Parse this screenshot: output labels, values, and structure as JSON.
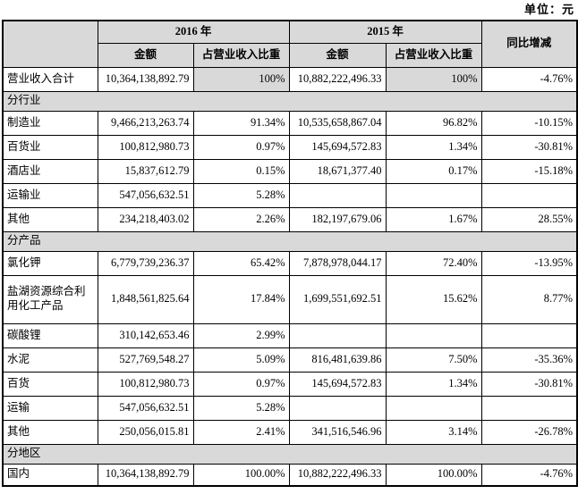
{
  "unit_label": "单位：元",
  "table": {
    "col_headers": {
      "year_2016": "2016 年",
      "year_2015": "2015 年",
      "amount": "金额",
      "ratio": "占营业收入比重",
      "yoy": "同比增减"
    },
    "colors": {
      "header_bg": "#d9d9d9",
      "section_bg": "#d9d9d9",
      "border": "#000000"
    },
    "rows": [
      {
        "type": "data",
        "label": "营业收入合计",
        "amount_2016": "10,364,138,892.79",
        "ratio_2016": "100%",
        "amount_2015": "10,882,222,496.33",
        "ratio_2015": "100%",
        "yoy": "-4.76%",
        "shaded_ratio": true
      },
      {
        "type": "section",
        "label": "分行业"
      },
      {
        "type": "data",
        "label": "制造业",
        "amount_2016": "9,466,213,263.74",
        "ratio_2016": "91.34%",
        "amount_2015": "10,535,658,867.04",
        "ratio_2015": "96.82%",
        "yoy": "-10.15%"
      },
      {
        "type": "data",
        "label": "百货业",
        "amount_2016": "100,812,980.73",
        "ratio_2016": "0.97%",
        "amount_2015": "145,694,572.83",
        "ratio_2015": "1.34%",
        "yoy": "-30.81%"
      },
      {
        "type": "data",
        "label": "酒店业",
        "amount_2016": "15,837,612.79",
        "ratio_2016": "0.15%",
        "amount_2015": "18,671,377.40",
        "ratio_2015": "0.17%",
        "yoy": "-15.18%"
      },
      {
        "type": "data",
        "label": "运输业",
        "amount_2016": "547,056,632.51",
        "ratio_2016": "5.28%",
        "amount_2015": "",
        "ratio_2015": "",
        "yoy": ""
      },
      {
        "type": "data",
        "label": "其他",
        "amount_2016": "234,218,403.02",
        "ratio_2016": "2.26%",
        "amount_2015": "182,197,679.06",
        "ratio_2015": "1.67%",
        "yoy": "28.55%"
      },
      {
        "type": "section",
        "label": "分产品"
      },
      {
        "type": "data",
        "label": "氯化钾",
        "amount_2016": "6,779,739,236.37",
        "ratio_2016": "65.42%",
        "amount_2015": "7,878,978,044.17",
        "ratio_2015": "72.40%",
        "yoy": "-13.95%"
      },
      {
        "type": "data",
        "label": "盐湖资源综合利用化工产品",
        "amount_2016": "1,848,561,825.64",
        "ratio_2016": "17.84%",
        "amount_2015": "1,699,551,692.51",
        "ratio_2015": "15.62%",
        "yoy": "8.77%",
        "tall": true
      },
      {
        "type": "data",
        "label": "碳酸锂",
        "amount_2016": "310,142,653.46",
        "ratio_2016": "2.99%",
        "amount_2015": "",
        "ratio_2015": "",
        "yoy": ""
      },
      {
        "type": "data",
        "label": "水泥",
        "amount_2016": "527,769,548.27",
        "ratio_2016": "5.09%",
        "amount_2015": "816,481,639.86",
        "ratio_2015": "7.50%",
        "yoy": "-35.36%"
      },
      {
        "type": "data",
        "label": "百货",
        "amount_2016": "100,812,980.73",
        "ratio_2016": "0.97%",
        "amount_2015": "145,694,572.83",
        "ratio_2015": "1.34%",
        "yoy": "-30.81%"
      },
      {
        "type": "data",
        "label": "运输",
        "amount_2016": "547,056,632.51",
        "ratio_2016": "5.28%",
        "amount_2015": "",
        "ratio_2015": "",
        "yoy": ""
      },
      {
        "type": "data",
        "label": "其他",
        "amount_2016": "250,056,015.81",
        "ratio_2016": "2.41%",
        "amount_2015": "341,516,546.96",
        "ratio_2015": "3.14%",
        "yoy": "-26.78%"
      },
      {
        "type": "section",
        "label": "分地区"
      },
      {
        "type": "data",
        "label": "国内",
        "amount_2016": "10,364,138,892.79",
        "ratio_2016": "100.00%",
        "amount_2015": "10,882,222,496.33",
        "ratio_2015": "100.00%",
        "yoy": "-4.76%",
        "last": true
      }
    ]
  }
}
